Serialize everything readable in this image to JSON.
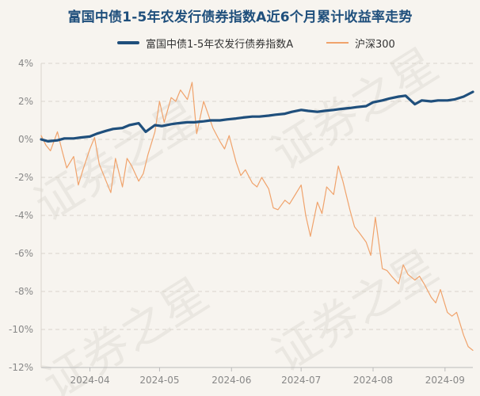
{
  "chart_data": {
    "type": "line",
    "title": "富国中债1-5年农发行债券指数A近6个月累计收益率走势",
    "xlabel": "",
    "ylabel": "",
    "y_unit": "%",
    "ylim": [
      -12,
      4
    ],
    "y_ticks": [
      4,
      2,
      0,
      -2,
      -4,
      -6,
      -8,
      -10,
      -12
    ],
    "y_tick_labels": [
      "4%",
      "2%",
      "0%",
      "-2%",
      "-4%",
      "-6%",
      "-8%",
      "-10%",
      "-12%"
    ],
    "x_range": [
      "2024-03-11",
      "2024-09-13"
    ],
    "x_ticks": [
      "2024-04-01",
      "2024-05-01",
      "2024-06-01",
      "2024-07-01",
      "2024-08-01",
      "2024-09-01"
    ],
    "x_tick_labels": [
      "2024-04",
      "2024-05",
      "2024-06",
      "2024-07",
      "2024-08",
      "2024-09"
    ],
    "grid": "horizontal-dashed",
    "legend_position": "top",
    "watermark": "证券之星",
    "series": [
      {
        "name": "富国中债1-5年农发行债券指数A",
        "color": "#1f4f7c",
        "x": [
          "2024-03-11",
          "2024-03-14",
          "2024-03-18",
          "2024-03-21",
          "2024-03-25",
          "2024-03-28",
          "2024-04-01",
          "2024-04-04",
          "2024-04-08",
          "2024-04-11",
          "2024-04-15",
          "2024-04-18",
          "2024-04-22",
          "2024-04-25",
          "2024-04-29",
          "2024-05-02",
          "2024-05-06",
          "2024-05-09",
          "2024-05-13",
          "2024-05-16",
          "2024-05-20",
          "2024-05-23",
          "2024-05-27",
          "2024-05-30",
          "2024-06-03",
          "2024-06-06",
          "2024-06-10",
          "2024-06-13",
          "2024-06-17",
          "2024-06-20",
          "2024-06-24",
          "2024-06-27",
          "2024-07-01",
          "2024-07-04",
          "2024-07-08",
          "2024-07-11",
          "2024-07-15",
          "2024-07-18",
          "2024-07-22",
          "2024-07-25",
          "2024-07-29",
          "2024-08-01",
          "2024-08-05",
          "2024-08-08",
          "2024-08-12",
          "2024-08-15",
          "2024-08-19",
          "2024-08-22",
          "2024-08-26",
          "2024-08-29",
          "2024-09-02",
          "2024-09-05",
          "2024-09-09",
          "2024-09-13"
        ],
        "y": [
          0.0,
          -0.1,
          -0.05,
          0.05,
          0.05,
          0.1,
          0.15,
          0.3,
          0.45,
          0.55,
          0.6,
          0.75,
          0.85,
          0.4,
          0.75,
          0.7,
          0.8,
          0.85,
          0.9,
          0.9,
          0.95,
          1.0,
          1.0,
          1.05,
          1.1,
          1.15,
          1.2,
          1.2,
          1.25,
          1.3,
          1.35,
          1.45,
          1.55,
          1.5,
          1.45,
          1.5,
          1.55,
          1.6,
          1.65,
          1.7,
          1.75,
          1.95,
          2.05,
          2.15,
          2.25,
          2.3,
          1.85,
          2.05,
          2.0,
          2.05,
          2.05,
          2.1,
          2.25,
          2.5
        ]
      },
      {
        "name": "沪深300",
        "color": "#f0a36c",
        "x": [
          "2024-03-11",
          "2024-03-13",
          "2024-03-15",
          "2024-03-18",
          "2024-03-20",
          "2024-03-22",
          "2024-03-25",
          "2024-03-27",
          "2024-03-29",
          "2024-04-01",
          "2024-04-03",
          "2024-04-05",
          "2024-04-08",
          "2024-04-10",
          "2024-04-12",
          "2024-04-15",
          "2024-04-17",
          "2024-04-19",
          "2024-04-22",
          "2024-04-24",
          "2024-04-26",
          "2024-04-29",
          "2024-05-01",
          "2024-05-03",
          "2024-05-06",
          "2024-05-08",
          "2024-05-10",
          "2024-05-13",
          "2024-05-15",
          "2024-05-17",
          "2024-05-20",
          "2024-05-22",
          "2024-05-24",
          "2024-05-27",
          "2024-05-29",
          "2024-05-31",
          "2024-06-03",
          "2024-06-05",
          "2024-06-07",
          "2024-06-10",
          "2024-06-12",
          "2024-06-14",
          "2024-06-17",
          "2024-06-19",
          "2024-06-21",
          "2024-06-24",
          "2024-06-26",
          "2024-06-28",
          "2024-07-01",
          "2024-07-03",
          "2024-07-05",
          "2024-07-08",
          "2024-07-10",
          "2024-07-12",
          "2024-07-15",
          "2024-07-17",
          "2024-07-19",
          "2024-07-22",
          "2024-07-24",
          "2024-07-26",
          "2024-07-29",
          "2024-07-31",
          "2024-08-02",
          "2024-08-05",
          "2024-08-07",
          "2024-08-09",
          "2024-08-12",
          "2024-08-14",
          "2024-08-16",
          "2024-08-19",
          "2024-08-21",
          "2024-08-23",
          "2024-08-26",
          "2024-08-28",
          "2024-08-30",
          "2024-09-02",
          "2024-09-04",
          "2024-09-06",
          "2024-09-09",
          "2024-09-11",
          "2024-09-13"
        ],
        "y": [
          0.2,
          -0.3,
          -0.6,
          0.4,
          -0.6,
          -1.5,
          -0.9,
          -2.4,
          -1.6,
          -0.5,
          0.1,
          -1.3,
          -2.2,
          -2.8,
          -1.0,
          -2.5,
          -1.0,
          -1.4,
          -2.2,
          -1.8,
          -0.8,
          0.4,
          2.0,
          0.9,
          2.2,
          2.0,
          2.6,
          2.1,
          3.0,
          0.3,
          2.0,
          1.3,
          0.6,
          -0.1,
          -0.5,
          0.2,
          -1.2,
          -1.9,
          -1.6,
          -2.3,
          -2.5,
          -2.0,
          -2.6,
          -3.6,
          -3.7,
          -3.2,
          -3.4,
          -3.0,
          -2.4,
          -4.0,
          -5.1,
          -3.3,
          -3.9,
          -2.5,
          -2.9,
          -1.4,
          -2.2,
          -3.7,
          -4.6,
          -4.9,
          -5.4,
          -6.1,
          -4.1,
          -6.8,
          -6.9,
          -7.2,
          -7.6,
          -6.6,
          -7.1,
          -7.4,
          -7.2,
          -7.6,
          -8.3,
          -8.6,
          -7.9,
          -9.1,
          -9.3,
          -9.1,
          -10.3,
          -10.9,
          -11.1
        ]
      }
    ]
  }
}
